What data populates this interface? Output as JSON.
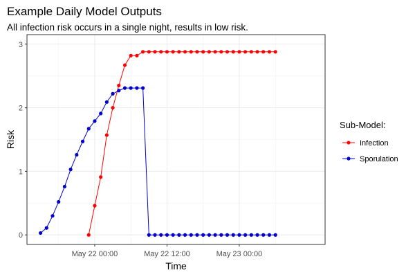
{
  "chart_data": {
    "type": "line",
    "title": "Example Daily Model Outputs",
    "subtitle": "All infection risk occurs in a single night, results in low risk.",
    "xlabel": "Time",
    "ylabel": "Risk",
    "ylim": [
      0,
      3
    ],
    "yticks": [
      0,
      1,
      2,
      3
    ],
    "xlim": [
      "2021-05-21 15:00",
      "2021-05-23 12:00"
    ],
    "xticks": [
      {
        "x": "2021-05-22 00:00",
        "label": "May 22 00:00"
      },
      {
        "x": "2021-05-22 12:00",
        "label": "May 22 12:00"
      },
      {
        "x": "2021-05-23 00:00",
        "label": "May 23 00:00"
      }
    ],
    "grid": true,
    "legend": {
      "title": "Sub-Model:",
      "placement": "right"
    },
    "series": [
      {
        "name": "Infection",
        "color": "#ff0000",
        "x": [
          "2021-05-21 23:00",
          "2021-05-22 00:00",
          "2021-05-22 01:00",
          "2021-05-22 02:00",
          "2021-05-22 03:00",
          "2021-05-22 04:00",
          "2021-05-22 05:00",
          "2021-05-22 06:00",
          "2021-05-22 07:00",
          "2021-05-22 08:00",
          "2021-05-22 09:00",
          "2021-05-22 10:00",
          "2021-05-22 11:00",
          "2021-05-22 12:00",
          "2021-05-22 13:00",
          "2021-05-22 14:00",
          "2021-05-22 15:00",
          "2021-05-22 16:00",
          "2021-05-22 17:00",
          "2021-05-22 18:00",
          "2021-05-22 19:00",
          "2021-05-22 20:00",
          "2021-05-22 21:00",
          "2021-05-22 22:00",
          "2021-05-22 23:00",
          "2021-05-23 00:00",
          "2021-05-23 01:00",
          "2021-05-23 02:00",
          "2021-05-23 03:00",
          "2021-05-23 04:00",
          "2021-05-23 05:00",
          "2021-05-23 06:00"
        ],
        "values": [
          0.0,
          0.46,
          0.91,
          1.57,
          2.0,
          2.35,
          2.67,
          2.82,
          2.82,
          2.88,
          2.88,
          2.88,
          2.88,
          2.88,
          2.88,
          2.88,
          2.88,
          2.88,
          2.88,
          2.88,
          2.88,
          2.88,
          2.88,
          2.88,
          2.88,
          2.88,
          2.88,
          2.88,
          2.88,
          2.88,
          2.88,
          2.88
        ]
      },
      {
        "name": "Sporulation",
        "color": "#0000cc",
        "x": [
          "2021-05-21 15:00",
          "2021-05-21 16:00",
          "2021-05-21 17:00",
          "2021-05-21 18:00",
          "2021-05-21 19:00",
          "2021-05-21 20:00",
          "2021-05-21 21:00",
          "2021-05-21 22:00",
          "2021-05-21 23:00",
          "2021-05-22 00:00",
          "2021-05-22 01:00",
          "2021-05-22 02:00",
          "2021-05-22 03:00",
          "2021-05-22 04:00",
          "2021-05-22 05:00",
          "2021-05-22 06:00",
          "2021-05-22 07:00",
          "2021-05-22 08:00",
          "2021-05-22 09:00",
          "2021-05-22 10:00",
          "2021-05-22 11:00",
          "2021-05-22 12:00",
          "2021-05-22 13:00",
          "2021-05-22 14:00",
          "2021-05-22 15:00",
          "2021-05-22 16:00",
          "2021-05-22 17:00",
          "2021-05-22 18:00",
          "2021-05-22 19:00",
          "2021-05-22 20:00",
          "2021-05-22 21:00",
          "2021-05-22 22:00",
          "2021-05-22 23:00",
          "2021-05-23 00:00",
          "2021-05-23 01:00",
          "2021-05-23 02:00",
          "2021-05-23 03:00",
          "2021-05-23 04:00",
          "2021-05-23 05:00",
          "2021-05-23 06:00"
        ],
        "values": [
          0.03,
          0.11,
          0.3,
          0.52,
          0.76,
          1.03,
          1.26,
          1.47,
          1.67,
          1.79,
          1.91,
          2.09,
          2.22,
          2.27,
          2.31,
          2.31,
          2.31,
          2.31,
          0.0,
          0.0,
          0.0,
          0.0,
          0.0,
          0.0,
          0.0,
          0.0,
          0.0,
          0.0,
          0.0,
          0.0,
          0.0,
          0.0,
          0.0,
          0.0,
          0.0,
          0.0,
          0.0,
          0.0,
          0.0,
          0.0
        ]
      }
    ]
  }
}
